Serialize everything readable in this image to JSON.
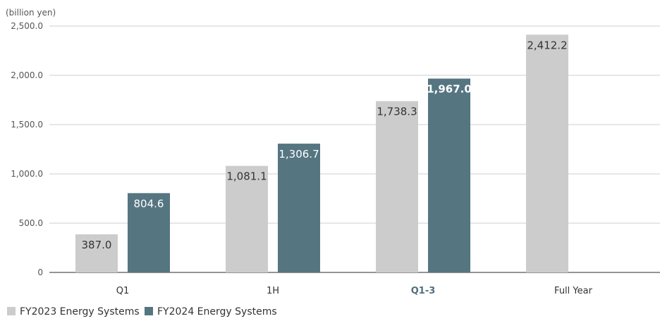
{
  "chart_data": {
    "type": "bar",
    "unit_label": "(billion yen)",
    "categories": [
      "Q1",
      "1H",
      "Q1-3",
      "Full Year"
    ],
    "highlight_category": "Q1-3",
    "series": [
      {
        "name": "FY2023 Energy Systems",
        "values": [
          387.0,
          1081.1,
          1738.3,
          2412.2
        ],
        "labels": [
          "387.0",
          "1,081.1",
          "1,738.3",
          "2,412.2"
        ],
        "color": "#cccccc",
        "label_color": "#333333"
      },
      {
        "name": "FY2024 Energy Systems",
        "values": [
          804.6,
          1306.7,
          1967.0,
          null
        ],
        "labels": [
          "804.6",
          "1,306.7",
          "1,967.0",
          null
        ],
        "color": "#557581",
        "label_color": "#ffffff"
      }
    ],
    "yticks": [
      {
        "value": 0,
        "label": "0"
      },
      {
        "value": 500,
        "label": "500.0"
      },
      {
        "value": 1000,
        "label": "1,000.0"
      },
      {
        "value": 1500,
        "label": "1,500.0"
      },
      {
        "value": 2000,
        "label": "2,000.0"
      },
      {
        "value": 2500,
        "label": "2,500.0"
      }
    ],
    "ylim": [
      0,
      2500
    ],
    "grid": true,
    "legend_position": "bottom-left"
  }
}
